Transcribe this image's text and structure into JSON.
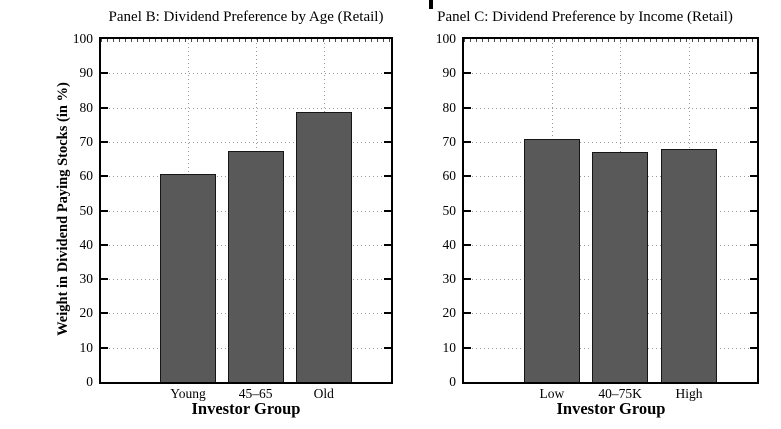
{
  "chart_data": [
    {
      "type": "bar",
      "title": "Panel B: Dividend Preference by Age (Retail)",
      "categories": [
        "Young",
        "45–65",
        "Old"
      ],
      "values": [
        60.6,
        67.3,
        78.6
      ],
      "xlabel": "Investor Group",
      "ylabel": "Weight in Dividend Paying Stocks (in %)",
      "ylim": [
        0,
        100
      ],
      "ytick_step": 10,
      "grid": "dotted horizontal lines at each y tick; dotted vertical lines at bar centers",
      "legend": "none",
      "bar_color": "#595959"
    },
    {
      "type": "bar",
      "title": "Panel C: Dividend Preference by Income (Retail)",
      "categories": [
        "Low",
        "40–75K",
        "High"
      ],
      "values": [
        70.9,
        67.2,
        68.0
      ],
      "xlabel": "Investor Group",
      "ylabel": "",
      "ylim": [
        0,
        100
      ],
      "ytick_step": 10,
      "grid": "dotted horizontal lines at each y tick; dotted vertical lines at bar centers",
      "legend": "none",
      "bar_color": "#595959"
    }
  ]
}
